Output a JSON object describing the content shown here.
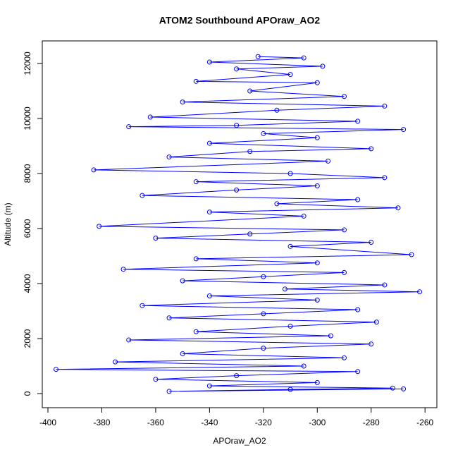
{
  "chart_data": {
    "type": "line",
    "title": "ATOM2 Southbound APOraw_AO2",
    "xlabel": "APOraw_AO2",
    "ylabel": "Altitude (m)",
    "x": [
      -322,
      -305,
      -340,
      -298,
      -330,
      -310,
      -345,
      -300,
      -325,
      -290,
      -350,
      -275,
      -315,
      -362,
      -285,
      -330,
      -370,
      -268,
      -320,
      -300,
      -340,
      -280,
      -325,
      -355,
      -296,
      -383,
      -310,
      -275,
      -345,
      -300,
      -330,
      -365,
      -285,
      -315,
      -270,
      -340,
      -305,
      -381,
      -290,
      -325,
      -360,
      -280,
      -310,
      -265,
      -345,
      -300,
      -372,
      -290,
      -320,
      -350,
      -275,
      -312,
      -262,
      -340,
      -300,
      -365,
      -285,
      -320,
      -355,
      -278,
      -310,
      -345,
      -295,
      -370,
      -280,
      -320,
      -350,
      -290,
      -375,
      -305,
      -397,
      -285,
      -330,
      -360,
      -300,
      -340,
      -272,
      -310,
      -355,
      -268
    ],
    "series": [
      {
        "color": "#0000ff",
        "marker": "circle",
        "values": [
          12250,
          12200,
          12050,
          11900,
          11800,
          11600,
          11350,
          11300,
          11000,
          10800,
          10600,
          10450,
          10300,
          10050,
          9900,
          9750,
          9700,
          9600,
          9450,
          9300,
          9100,
          8900,
          8800,
          8600,
          8450,
          8130,
          8000,
          7850,
          7700,
          7550,
          7400,
          7200,
          7050,
          6900,
          6750,
          6600,
          6450,
          6080,
          5950,
          5800,
          5650,
          5500,
          5350,
          5050,
          4900,
          4750,
          4520,
          4400,
          4250,
          4100,
          3950,
          3800,
          3700,
          3550,
          3400,
          3200,
          3050,
          2900,
          2750,
          2600,
          2450,
          2250,
          2100,
          1950,
          1800,
          1650,
          1450,
          1300,
          1150,
          1000,
          880,
          800,
          650,
          520,
          400,
          280,
          200,
          150,
          80,
          170
        ]
      }
    ],
    "xlim": [
      -402.1,
      -255.6
    ],
    "ylim": [
      -513,
      12820
    ],
    "xticks": [
      -400,
      -380,
      -360,
      -340,
      -320,
      -300,
      -280,
      -260
    ],
    "yticks": [
      0,
      2000,
      4000,
      6000,
      8000,
      10000,
      12000
    ]
  }
}
